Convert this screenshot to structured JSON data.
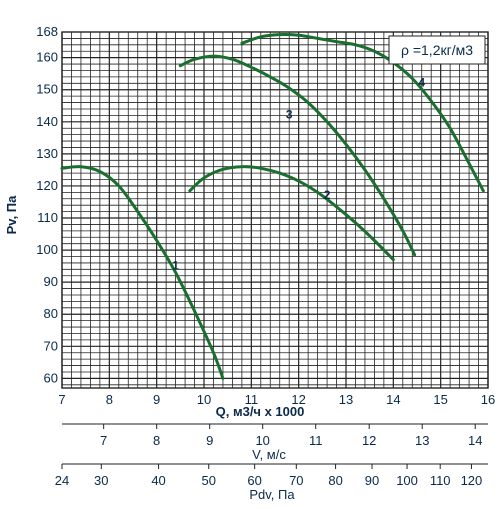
{
  "chart_data": {
    "type": "line",
    "title": "",
    "annotation": "ρ =1,2кг/м3",
    "ylabel": "Pv, Па",
    "xlabel": "Q, м3/ч x 1000",
    "xlim": [
      7,
      16
    ],
    "ylim": [
      57,
      168
    ],
    "grid": true,
    "y_ticks": [
      60,
      70,
      80,
      90,
      100,
      110,
      120,
      130,
      140,
      150,
      160,
      168
    ],
    "x_ticks": [
      7,
      8,
      9,
      10,
      11,
      12,
      13,
      14,
      15,
      16
    ],
    "secondary_axes": [
      {
        "label": "V, м/с",
        "ticks": [
          {
            "label": "7",
            "q": 7.88
          },
          {
            "label": "8",
            "q": 9.0
          },
          {
            "label": "9",
            "q": 10.12
          },
          {
            "label": "10",
            "q": 11.24
          },
          {
            "label": "11",
            "q": 12.36
          },
          {
            "label": "12",
            "q": 13.49
          },
          {
            "label": "13",
            "q": 14.61
          },
          {
            "label": "14",
            "q": 15.73
          }
        ]
      },
      {
        "label": "Pdv, Па",
        "ticks": [
          {
            "label": "24",
            "q": 7.0
          },
          {
            "label": "30",
            "q": 7.83
          },
          {
            "label": "40",
            "q": 9.04
          },
          {
            "label": "50",
            "q": 10.1
          },
          {
            "label": "60",
            "q": 11.07
          },
          {
            "label": "70",
            "q": 11.95
          },
          {
            "label": "80",
            "q": 12.78
          },
          {
            "label": "90",
            "q": 13.55
          },
          {
            "label": "100",
            "q": 14.29
          },
          {
            "label": "110",
            "q": 14.99
          },
          {
            "label": "120",
            "q": 15.65
          }
        ]
      }
    ],
    "series": [
      {
        "name": "1",
        "label_at": [
          9.4,
          94
        ],
        "points": [
          [
            7.0,
            125.5
          ],
          [
            7.4,
            126
          ],
          [
            7.8,
            124.5
          ],
          [
            8.2,
            120
          ],
          [
            8.6,
            112
          ],
          [
            9.0,
            103
          ],
          [
            9.4,
            93
          ],
          [
            9.8,
            81
          ],
          [
            10.2,
            68
          ],
          [
            10.4,
            60
          ]
        ]
      },
      {
        "name": "2",
        "label_at": [
          12.6,
          116
        ],
        "points": [
          [
            9.7,
            118.5
          ],
          [
            10.0,
            122.5
          ],
          [
            10.4,
            125.2
          ],
          [
            10.8,
            126
          ],
          [
            11.2,
            125.5
          ],
          [
            11.6,
            124
          ],
          [
            12.0,
            121.5
          ],
          [
            12.4,
            118
          ],
          [
            12.8,
            113.5
          ],
          [
            13.2,
            108.5
          ],
          [
            13.6,
            103
          ],
          [
            14.0,
            97
          ]
        ]
      },
      {
        "name": "3",
        "label_at": [
          11.8,
          141
        ],
        "points": [
          [
            9.5,
            157.5
          ],
          [
            9.8,
            159.5
          ],
          [
            10.2,
            160.5
          ],
          [
            10.6,
            159.5
          ],
          [
            11.0,
            157
          ],
          [
            11.4,
            154
          ],
          [
            11.8,
            150.5
          ],
          [
            12.2,
            146
          ],
          [
            12.6,
            140
          ],
          [
            13.0,
            133
          ],
          [
            13.4,
            125
          ],
          [
            13.8,
            116
          ],
          [
            14.2,
            106
          ],
          [
            14.45,
            98.5
          ]
        ]
      },
      {
        "name": "4",
        "label_at": [
          14.6,
          151
        ],
        "points": [
          [
            10.8,
            164.5
          ],
          [
            11.2,
            166.5
          ],
          [
            11.6,
            167.2
          ],
          [
            12.0,
            167
          ],
          [
            12.4,
            166
          ],
          [
            12.8,
            165
          ],
          [
            13.2,
            164
          ],
          [
            13.6,
            162
          ],
          [
            14.0,
            158.5
          ],
          [
            14.4,
            153.5
          ],
          [
            14.8,
            146.5
          ],
          [
            15.2,
            138
          ],
          [
            15.6,
            127
          ],
          [
            15.9,
            118.5
          ]
        ]
      }
    ]
  },
  "colors": {
    "curve": "#1a6e2e",
    "grid": "#232323",
    "text": "#0b2a4a"
  }
}
